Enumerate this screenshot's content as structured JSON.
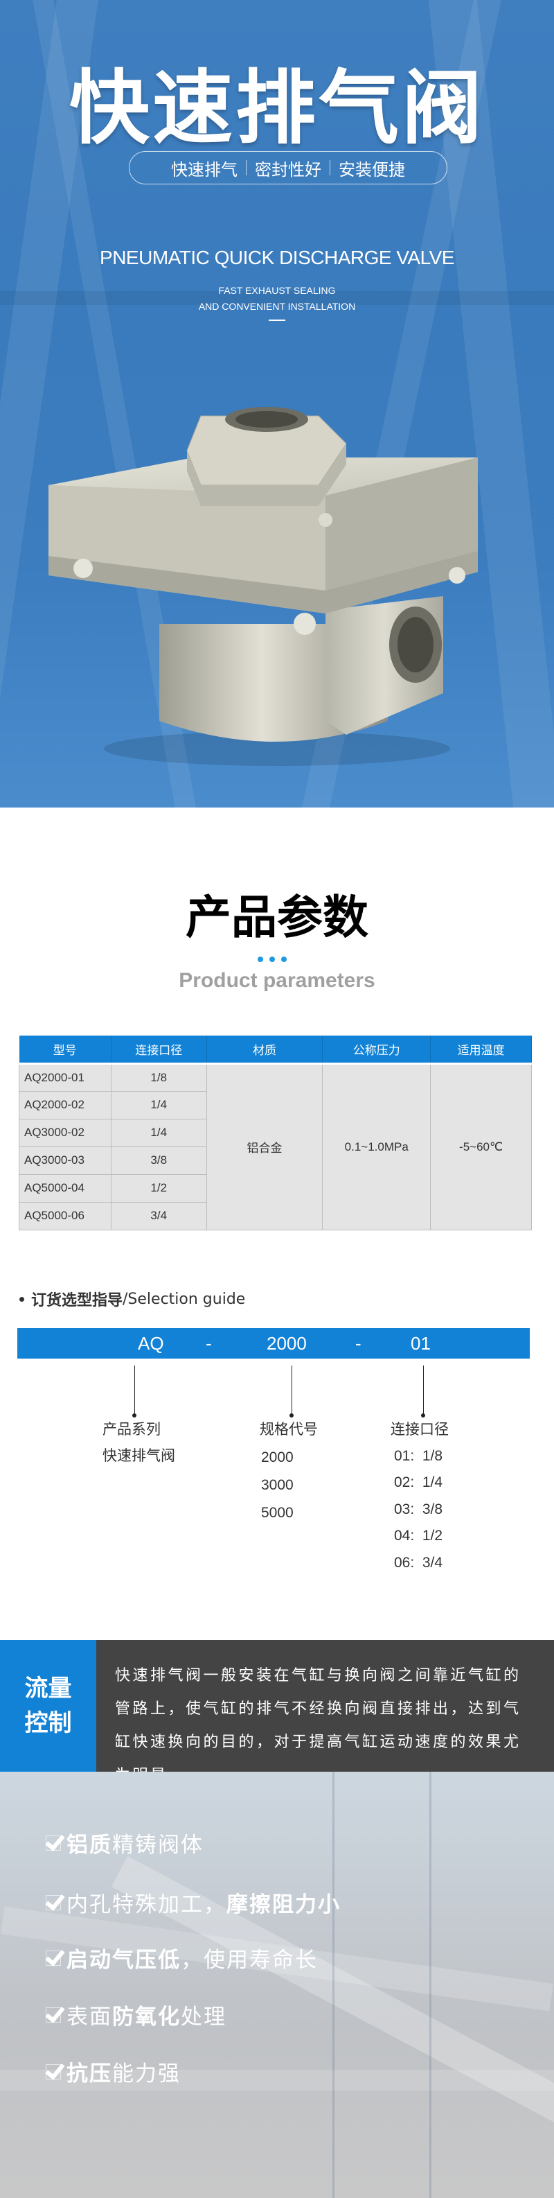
{
  "hero": {
    "title": "快速排气阀",
    "tags": [
      "快速排气",
      "密封性好",
      "安装便捷"
    ],
    "english_title": "PNEUMATIC QUICK DISCHARGE VALVE",
    "english_sub": [
      "FAST EXHAUST SEALING",
      "AND CONVENIENT INSTALLATION"
    ]
  },
  "params": {
    "title": "产品参数",
    "subtitle": "Product parameters",
    "headers": [
      "型号",
      "连接口径",
      "材质",
      "公称压力",
      "适用温度"
    ],
    "rows": [
      {
        "model": "AQ2000-01",
        "port": "1/8"
      },
      {
        "model": "AQ2000-02",
        "port": "1/4"
      },
      {
        "model": "AQ3000-02",
        "port": "1/4"
      },
      {
        "model": "AQ3000-03",
        "port": "3/8"
      },
      {
        "model": "AQ5000-04",
        "port": "1/2"
      },
      {
        "model": "AQ5000-06",
        "port": "3/4"
      }
    ],
    "material": "铝合金",
    "pressure": "0.1~1.0MPa",
    "temperature": "-5~60℃"
  },
  "selection": {
    "heading_cn": "订货选型指导",
    "heading_en": "/Selection guide",
    "code": [
      "AQ",
      "-",
      "2000",
      "-",
      "01"
    ],
    "series": {
      "label": "产品系列",
      "value": "快速排气阀"
    },
    "size": {
      "label": "规格代号",
      "values": [
        "2000",
        "3000",
        "5000"
      ]
    },
    "port": {
      "label": "连接口径",
      "values": [
        "01:  1/8",
        "02:  1/4",
        "03:  3/8",
        "04:  1/2",
        "06:  3/4"
      ]
    }
  },
  "flow": {
    "tag": [
      "流量",
      "控制"
    ],
    "text": "快速排气阀一般安装在气缸与换向阀之间靠近气缸的管路上，使气缸的排气不经换向阀直接排出，达到气缸快速换向的目的，对于提高气缸运动速度的效果尤为明显。"
  },
  "features": [
    {
      "bold": "铝质",
      "rest": "精铸阀体"
    },
    {
      "pre": "内孔特殊加工，",
      "bold": "摩擦阻力小"
    },
    {
      "bold": "启动气压低",
      "rest": "，使用寿命长"
    },
    {
      "pre": "表面",
      "bold": "防氧化",
      "rest": "处理"
    },
    {
      "bold": "抗压",
      "rest": "能力强"
    }
  ],
  "colors": {
    "brand_blue": "#1282d6",
    "dark_panel": "#444444",
    "dot_blue": "#1e9be0"
  }
}
